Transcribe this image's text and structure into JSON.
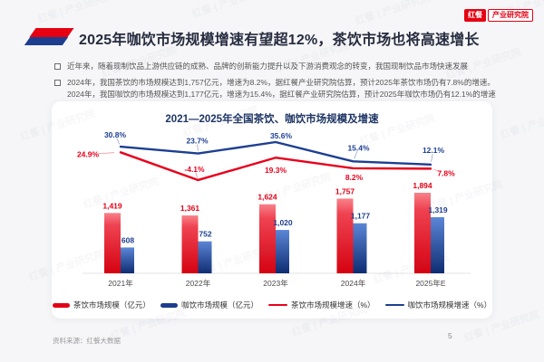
{
  "logo": {
    "brand": "红餐",
    "org": "产业研究院"
  },
  "watermark": {
    "text": "红餐 | 产业研究院"
  },
  "header": {
    "title": "2025年咖饮市场规模增速有望超12%，茶饮市场也将高速增长"
  },
  "bullets": [
    {
      "lines": [
        "近年来，随着现制饮品上游供应链的成熟、品牌的创新能力提升以及下游消费观念的转变，我国现制饮品市场快速发展"
      ]
    },
    {
      "lines": [
        "2024年，我国茶饮的市场规模达到1,757亿元，增速为8.2%，据红餐产业研究院估算，预计2025年茶饮市场仍有7.8%的增速。",
        "2024年，我国咖饮的市场规模达到1,177亿元，增速为15.4%，据红餐产业研究院估算，预计2025年咖饮市场仍有12.1%的增速"
      ]
    }
  ],
  "chart_data": {
    "type": "bar+line",
    "title": "2021—2025年全国茶饮、咖饮市场规模及增速",
    "categories": [
      "2021年",
      "2022年",
      "2023年",
      "2024年",
      "2025年E"
    ],
    "bar_series": [
      {
        "name": "茶饮市场规模（亿元）",
        "color": "#e30016",
        "values": [
          1419,
          1361,
          1624,
          1757,
          1894
        ],
        "labels": [
          "1,419",
          "1,361",
          "1,624",
          "1,757",
          "1,894"
        ]
      },
      {
        "name": "咖饮市场规模（亿元）",
        "color": "#1c3d8f",
        "values": [
          608,
          752,
          1020,
          1177,
          1319
        ],
        "labels": [
          "608",
          "752",
          "1,020",
          "1,177",
          "1,319"
        ]
      }
    ],
    "line_series": [
      {
        "name": "茶饮市场规模增速（%）",
        "color": "#e8001c",
        "values": [
          24.9,
          -4.1,
          19.3,
          8.2,
          7.8
        ],
        "labels": [
          "24.9%",
          "-4.1%",
          "19.3%",
          "8.2%",
          "7.8%"
        ]
      },
      {
        "name": "咖饮市场规模增速（%）",
        "color": "#1c3f92",
        "values": [
          30.8,
          23.7,
          35.6,
          15.4,
          12.1
        ],
        "labels": [
          "30.8%",
          "23.7%",
          "35.6%",
          "15.4%",
          "12.1%"
        ]
      }
    ],
    "legend": [
      "茶饮市场规模（亿元）",
      "咖饮市场规模（亿元）",
      "茶饮市场规模增速（%）",
      "咖饮市场规模增速（%）"
    ],
    "bar_axis_range": [
      0,
      2000
    ],
    "line_axis_range": [
      -10,
      40
    ],
    "grid": false,
    "legend_position": "bottom"
  },
  "footer": {
    "source": "资料来源：红餐大数据",
    "page": "5"
  }
}
